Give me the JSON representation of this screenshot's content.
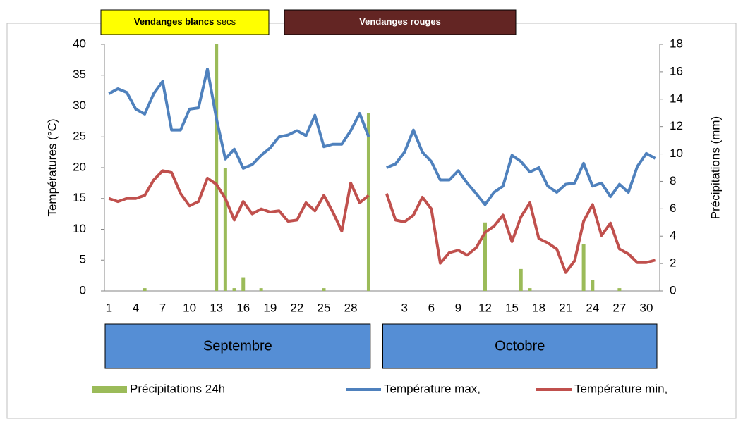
{
  "chart_data": {
    "type": "combo",
    "y_label": "Températures (°C)",
    "y2_label": "Précipitations (mm)",
    "ylim": [
      0,
      40
    ],
    "yticks": [
      0,
      5,
      10,
      15,
      20,
      25,
      30,
      35,
      40
    ],
    "y2lim": [
      0,
      18
    ],
    "y2ticks": [
      0,
      2,
      4,
      6,
      8,
      10,
      12,
      14,
      16,
      18
    ],
    "label_interval": 3,
    "categories": [
      "1",
      "2",
      "3",
      "4",
      "5",
      "6",
      "7",
      "8",
      "9",
      "10",
      "11",
      "12",
      "13",
      "14",
      "15",
      "16",
      "17",
      "18",
      "19",
      "20",
      "21",
      "22",
      "23",
      "24",
      "25",
      "26",
      "27",
      "28",
      "29",
      "30",
      null,
      "1",
      "2",
      "3",
      "4",
      "5",
      "6",
      "7",
      "8",
      "9",
      "10",
      "11",
      "12",
      "13",
      "14",
      "15",
      "16",
      "17",
      "18",
      "19",
      "20",
      "21",
      "22",
      "23",
      "24",
      "25",
      "26",
      "27",
      "28",
      "29",
      "30",
      "31"
    ],
    "series": [
      {
        "name": "Précipitations 24h",
        "type": "bar",
        "axis": "y2",
        "color": "#9bbb59",
        "values": [
          0,
          0,
          0,
          0,
          0.2,
          0,
          0,
          0,
          0,
          0,
          0,
          0,
          18,
          9,
          0.2,
          1,
          0,
          0.2,
          0,
          0,
          0,
          0,
          0,
          0,
          0.2,
          0,
          0,
          0,
          0,
          13,
          null,
          0,
          0,
          0,
          0,
          0,
          0,
          0,
          0,
          0,
          0,
          0,
          5,
          0,
          0,
          0,
          1.6,
          0.2,
          0,
          0,
          0,
          0,
          0,
          3.4,
          0.8,
          0,
          0,
          0.2,
          0,
          0,
          0,
          0
        ]
      },
      {
        "name": "Température max,",
        "type": "line",
        "color": "#4f81bd",
        "values": [
          32,
          32.8,
          32.2,
          29.5,
          28.7,
          32,
          34,
          26.1,
          26.1,
          29.5,
          29.7,
          36,
          28,
          21.4,
          23,
          19.9,
          20.5,
          22,
          23.2,
          25,
          25.3,
          26,
          25.2,
          28.5,
          23.4,
          23.8,
          23.8,
          26,
          28.8,
          25,
          null,
          20,
          20.6,
          22.5,
          26.1,
          22.5,
          21,
          18,
          18,
          19.5,
          17.5,
          15.8,
          14,
          16,
          17,
          22,
          21,
          19.3,
          20,
          17,
          16,
          17.3,
          17.5,
          20.7,
          17,
          17.5,
          15.3,
          17.3,
          16,
          20.2,
          22.3,
          21.5
        ]
      },
      {
        "name": "Température min,",
        "type": "line",
        "color": "#c0504d",
        "values": [
          15,
          14.5,
          15,
          15,
          15.5,
          18,
          19.5,
          19.2,
          15.8,
          13.8,
          14.5,
          18.3,
          17.3,
          15,
          11.5,
          14.5,
          12.5,
          13.3,
          12.8,
          13,
          11.3,
          11.5,
          14.3,
          13,
          15.5,
          12.8,
          9.7,
          17.5,
          14.3,
          15.5,
          null,
          15.8,
          11.5,
          11.2,
          12.3,
          15.2,
          13.3,
          4.5,
          6.2,
          6.6,
          5.8,
          7,
          9.5,
          10.5,
          12.3,
          8,
          12,
          14.3,
          8.5,
          7.8,
          6.8,
          3,
          4.9,
          11.3,
          14,
          9,
          11,
          6.8,
          6,
          4.6,
          4.6,
          5
        ]
      }
    ],
    "header_boxes": [
      {
        "parts": [
          "Vendanges blancs",
          "secs"
        ],
        "color": "#ffff00",
        "text_color": "#000000"
      },
      {
        "parts": [
          "Vendanges rouges"
        ],
        "color": "#632523",
        "text_color": "#ffffff"
      }
    ],
    "month_boxes": [
      {
        "label": "Septembre",
        "color": "#558ed5"
      },
      {
        "label": "Octobre",
        "color": "#558ed5"
      }
    ]
  }
}
